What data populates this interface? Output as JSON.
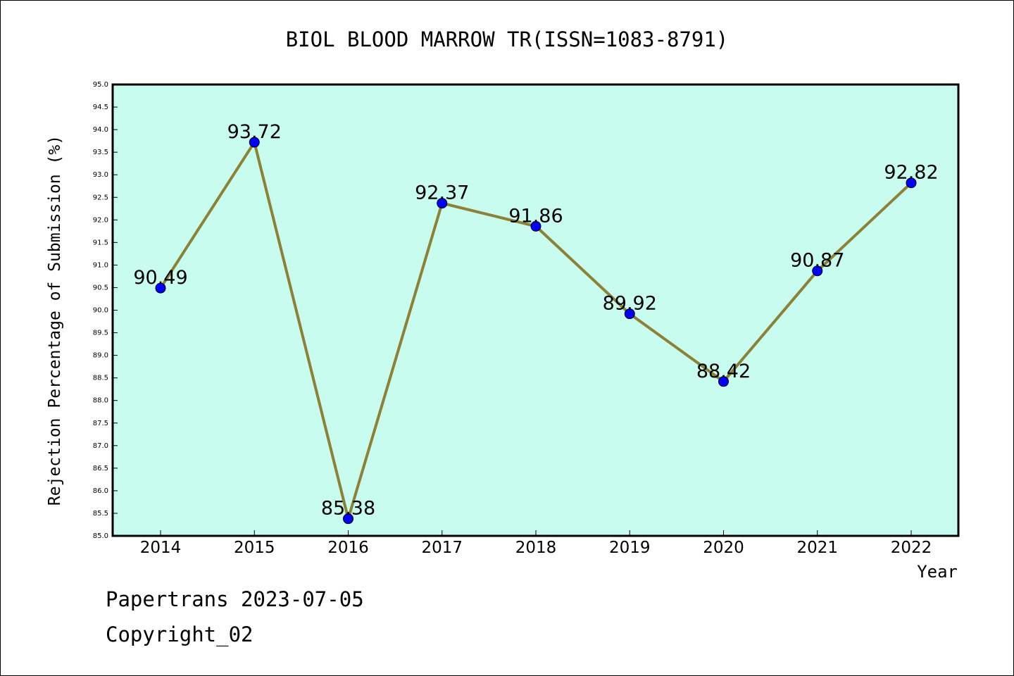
{
  "chart_data": {
    "type": "line",
    "title": "BIOL BLOOD MARROW TR(ISSN=1083-8791)",
    "xlabel": "Year",
    "ylabel": "Rejection Percentage of Submission (%)",
    "categories": [
      "2014",
      "2015",
      "2016",
      "2017",
      "2018",
      "2019",
      "2020",
      "2021",
      "2022"
    ],
    "values": [
      90.49,
      93.72,
      85.38,
      92.37,
      91.86,
      89.92,
      88.42,
      90.87,
      92.82
    ],
    "data_labels": [
      "90.49",
      "93.72",
      "85.38",
      "92.37",
      "91.86",
      "89.92",
      "88.42",
      "90.87",
      "92.82"
    ],
    "ylim": [
      85.0,
      95.0
    ],
    "ytick_step": 0.5,
    "grid": false,
    "legend": "none",
    "colors": {
      "plot_background": "#c8fcee",
      "line": "#8c8237",
      "marker": "#0000ff"
    }
  },
  "footer": {
    "line1": "Papertrans 2023-07-05",
    "line2": "Copyright_02"
  }
}
